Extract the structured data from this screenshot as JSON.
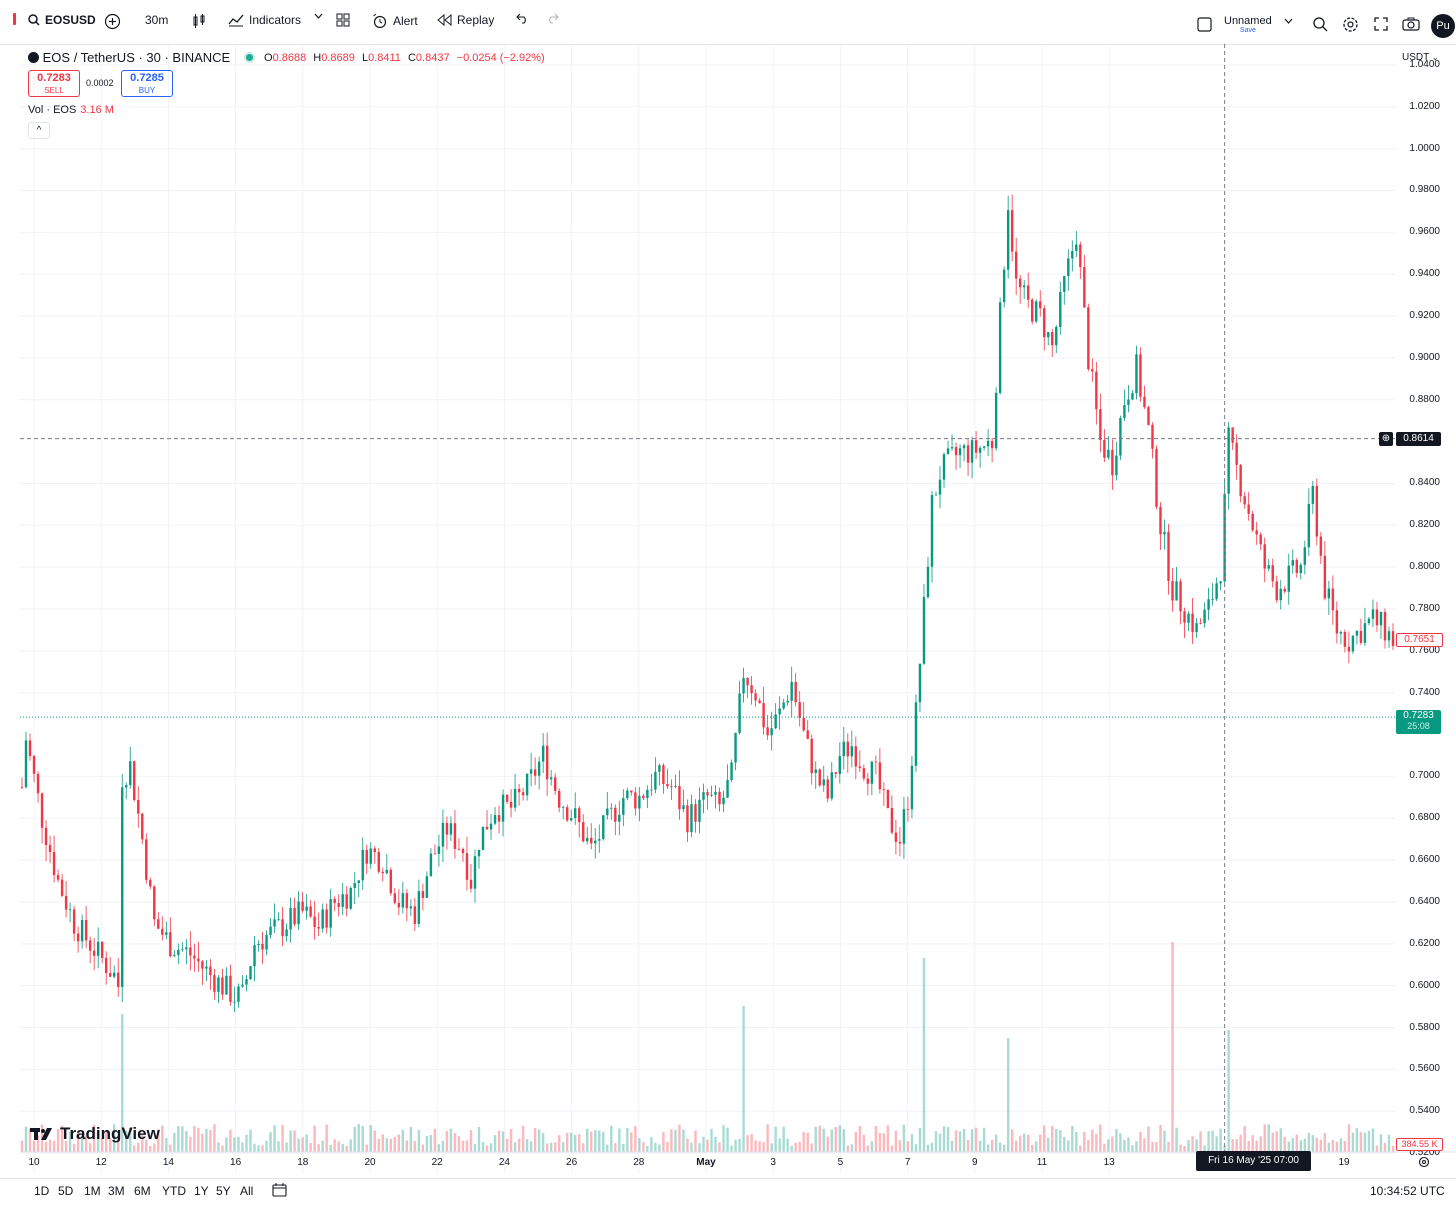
{
  "toolbar": {
    "symbol": "EOSUSD",
    "interval": "30m",
    "indicators": "Indicators",
    "alert": "Alert",
    "replay": "Replay",
    "layout_name": "Unnamed",
    "layout_save": "Save",
    "avatar_text": "Pu"
  },
  "legend": {
    "title": "EOS / TetherUS · 30 · BINANCE",
    "o_label": "O",
    "o": "0.8688",
    "h_label": "H",
    "h": "0.8689",
    "l_label": "L",
    "l": "0.8411",
    "c_label": "C",
    "c": "0.8437",
    "change": "−0.0254 (−2.92%)",
    "sell_price": "0.7283",
    "sell_label": "SELL",
    "spread": "0.0002",
    "buy_price": "0.7285",
    "buy_label": "BUY",
    "vol_label": "Vol · EOS",
    "vol_value": "3.16 M",
    "collapse": "^"
  },
  "price_axis": {
    "currency": "USDT",
    "ticks": [
      "1.0400",
      "1.0200",
      "1.0000",
      "0.9800",
      "0.9600",
      "0.9400",
      "0.9200",
      "0.9000",
      "0.8800",
      "0.8400",
      "0.8200",
      "0.8000",
      "0.7800",
      "0.7600",
      "0.7400",
      "0.7000",
      "0.6800",
      "0.6600",
      "0.6400",
      "0.6200",
      "0.6000",
      "0.5800",
      "0.5600",
      "0.5400",
      "0.5200"
    ],
    "crosshair_price": "0.8614",
    "last_red_price": "0.7651",
    "current_price": "0.7283",
    "countdown": "25:08",
    "volume_tag": "384.55 K"
  },
  "time_axis": {
    "ticks": [
      "10",
      "12",
      "14",
      "16",
      "18",
      "20",
      "22",
      "24",
      "26",
      "28",
      "May",
      "3",
      "5",
      "7",
      "9",
      "11",
      "13",
      "19"
    ],
    "crosshair_time": "Fri 16 May '25   07:00"
  },
  "branding": {
    "logo": "TradingView"
  },
  "bottom": {
    "ranges": [
      "1D",
      "5D",
      "1M",
      "3M",
      "6M",
      "YTD",
      "1Y",
      "5Y",
      "All"
    ],
    "clock": "10:34:52 UTC"
  },
  "colors": {
    "up": "#089981",
    "down": "#f23645",
    "accent": "#2962ff"
  },
  "chart_data": {
    "type": "candlestick",
    "title": "EOS / TetherUS · 30 · BINANCE",
    "ylim": [
      0.51,
      1.05
    ],
    "x_ticks": [
      "10",
      "12",
      "14",
      "16",
      "18",
      "20",
      "22",
      "24",
      "26",
      "28",
      "May",
      "3",
      "5",
      "7",
      "9",
      "11",
      "13",
      "19"
    ],
    "close_path": [
      [
        0,
        0.695
      ],
      [
        1,
        0.718
      ],
      [
        5,
        0.68
      ],
      [
        9,
        0.65
      ],
      [
        13,
        0.63
      ],
      [
        17,
        0.62
      ],
      [
        21,
        0.61
      ],
      [
        23,
        0.605
      ],
      [
        24,
        0.6
      ],
      [
        25,
        0.7
      ],
      [
        27,
        0.705
      ],
      [
        30,
        0.67
      ],
      [
        33,
        0.63
      ],
      [
        37,
        0.62
      ],
      [
        42,
        0.615
      ],
      [
        47,
        0.605
      ],
      [
        50,
        0.6
      ],
      [
        53,
        0.595
      ],
      [
        55,
        0.595
      ],
      [
        58,
        0.62
      ],
      [
        62,
        0.625
      ],
      [
        66,
        0.63
      ],
      [
        70,
        0.635
      ],
      [
        74,
        0.628
      ],
      [
        78,
        0.64
      ],
      [
        82,
        0.645
      ],
      [
        86,
        0.665
      ],
      [
        90,
        0.66
      ],
      [
        94,
        0.64
      ],
      [
        98,
        0.635
      ],
      [
        102,
        0.66
      ],
      [
        106,
        0.675
      ],
      [
        110,
        0.665
      ],
      [
        112,
        0.65
      ],
      [
        114,
        0.67
      ],
      [
        118,
        0.685
      ],
      [
        122,
        0.685
      ],
      [
        126,
        0.695
      ],
      [
        130,
        0.71
      ],
      [
        134,
        0.69
      ],
      [
        138,
        0.68
      ],
      [
        142,
        0.665
      ],
      [
        146,
        0.678
      ],
      [
        150,
        0.69
      ],
      [
        154,
        0.69
      ],
      [
        158,
        0.7
      ],
      [
        162,
        0.695
      ],
      [
        166,
        0.68
      ],
      [
        169,
        0.685
      ],
      [
        171,
        0.69
      ],
      [
        174,
        0.685
      ],
      [
        177,
        0.7
      ],
      [
        180,
        0.75
      ],
      [
        183,
        0.74
      ],
      [
        186,
        0.72
      ],
      [
        189,
        0.73
      ],
      [
        192,
        0.745
      ],
      [
        195,
        0.72
      ],
      [
        198,
        0.7
      ],
      [
        201,
        0.69
      ],
      [
        204,
        0.71
      ],
      [
        207,
        0.715
      ],
      [
        210,
        0.705
      ],
      [
        213,
        0.7
      ],
      [
        216,
        0.68
      ],
      [
        219,
        0.67
      ],
      [
        221,
        0.69
      ],
      [
        223,
        0.73
      ],
      [
        225,
        0.78
      ],
      [
        227,
        0.83
      ],
      [
        229,
        0.845
      ],
      [
        231,
        0.85
      ],
      [
        234,
        0.855
      ],
      [
        237,
        0.855
      ],
      [
        240,
        0.858
      ],
      [
        242,
        0.86
      ],
      [
        244,
        0.92
      ],
      [
        246,
        0.975
      ],
      [
        248,
        0.935
      ],
      [
        251,
        0.925
      ],
      [
        254,
        0.92
      ],
      [
        257,
        0.905
      ],
      [
        260,
        0.935
      ],
      [
        263,
        0.96
      ],
      [
        266,
        0.9
      ],
      [
        269,
        0.86
      ],
      [
        272,
        0.85
      ],
      [
        275,
        0.88
      ],
      [
        278,
        0.895
      ],
      [
        281,
        0.865
      ],
      [
        284,
        0.82
      ],
      [
        287,
        0.79
      ],
      [
        290,
        0.78
      ],
      [
        293,
        0.77
      ],
      [
        296,
        0.78
      ],
      [
        299,
        0.8
      ],
      [
        301,
        0.86
      ],
      [
        304,
        0.84
      ],
      [
        307,
        0.82
      ],
      [
        310,
        0.8
      ],
      [
        313,
        0.79
      ],
      [
        316,
        0.795
      ],
      [
        319,
        0.8
      ],
      [
        322,
        0.835
      ],
      [
        325,
        0.79
      ],
      [
        328,
        0.77
      ],
      [
        331,
        0.765
      ],
      [
        334,
        0.77
      ],
      [
        337,
        0.775
      ],
      [
        340,
        0.77
      ],
      [
        342,
        0.765
      ]
    ],
    "volume_spikes": [
      [
        25,
        0.55
      ],
      [
        180,
        0.6
      ],
      [
        225,
        0.9
      ],
      [
        246,
        0.4
      ],
      [
        287,
        1.0
      ],
      [
        301,
        0.45
      ]
    ],
    "crosshair": {
      "x": 300,
      "y": 0.8614
    },
    "current_price": 0.7283,
    "last_price": 0.7651
  }
}
